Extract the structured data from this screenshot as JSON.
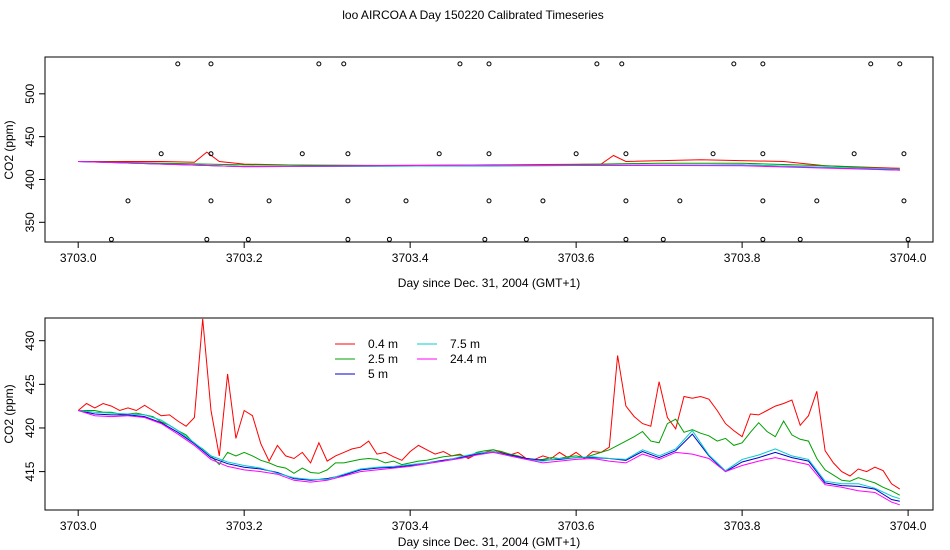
{
  "title": "loo AIRCOA A  Day 150220  Calibrated Timeseries",
  "chart_data": [
    {
      "type": "line",
      "xlabel": "Day since Dec. 31, 2004 (GMT+1)",
      "ylabel": "CO2 (ppm)",
      "xlim": [
        3702.96,
        3704.03
      ],
      "ylim": [
        327,
        543
      ],
      "xticks": [
        "3703.0",
        "3703.2",
        "3703.4",
        "3703.6",
        "3703.8",
        "3704.0"
      ],
      "yticks": [
        "350",
        "400",
        "450",
        "500"
      ],
      "series": [
        {
          "color": "#ff0000",
          "x": [
            3703.0,
            3703.1,
            3703.14,
            3703.155,
            3703.17,
            3703.2,
            3703.3,
            3703.5,
            3703.63,
            3703.645,
            3703.66,
            3703.75,
            3703.85,
            3703.9,
            3703.99
          ],
          "y": [
            421,
            421,
            420,
            432,
            421,
            418,
            416,
            417,
            418,
            428,
            421,
            423,
            421,
            416,
            413
          ]
        },
        {
          "color": "#00a000",
          "x": [
            3703.0,
            3703.2,
            3703.5,
            3703.7,
            3703.8,
            3703.9,
            3703.99
          ],
          "y": [
            421,
            417,
            416,
            419,
            419,
            416,
            412
          ]
        },
        {
          "color": "#0000cc",
          "x": [
            3703.0,
            3703.2,
            3703.5,
            3703.8,
            3703.9,
            3703.99
          ],
          "y": [
            421,
            415,
            416,
            417,
            414,
            411
          ]
        },
        {
          "color": "#00cccc",
          "x": [
            3703.0,
            3703.2,
            3703.5,
            3703.8,
            3703.99
          ],
          "y": [
            421,
            415,
            416,
            417,
            412
          ]
        },
        {
          "color": "#ff00ff",
          "x": [
            3703.0,
            3703.2,
            3703.5,
            3703.8,
            3703.99
          ],
          "y": [
            421,
            415,
            417,
            416,
            411
          ]
        }
      ],
      "markers": {
        "rows": [
          {
            "y": 535,
            "x": [
              3703.12,
              3703.16,
              3703.29,
              3703.32,
              3703.46,
              3703.495,
              3703.625,
              3703.655,
              3703.79,
              3703.825,
              3703.955,
              3703.99
            ]
          },
          {
            "y": 430,
            "x": [
              3703.1,
              3703.16,
              3703.27,
              3703.325,
              3703.435,
              3703.495,
              3703.6,
              3703.66,
              3703.765,
              3703.825,
              3703.935,
              3703.995
            ]
          },
          {
            "y": 375,
            "x": [
              3703.06,
              3703.16,
              3703.23,
              3703.325,
              3703.395,
              3703.495,
              3703.56,
              3703.66,
              3703.725,
              3703.825,
              3703.89,
              3703.995
            ]
          },
          {
            "y": 330,
            "x": [
              3703.04,
              3703.155,
              3703.205,
              3703.325,
              3703.375,
              3703.49,
              3703.54,
              3703.66,
              3703.705,
              3703.825,
              3703.87,
              3704.0
            ]
          }
        ]
      }
    },
    {
      "type": "line",
      "xlabel": "Day since Dec. 31, 2004 (GMT+1)",
      "ylabel": "CO2 (ppm)",
      "xlim": [
        3702.96,
        3704.03
      ],
      "ylim": [
        410.6,
        432.6
      ],
      "xticks": [
        "3703.0",
        "3703.2",
        "3703.4",
        "3703.6",
        "3703.8",
        "3704.0"
      ],
      "yticks": [
        "415",
        "420",
        "425",
        "430"
      ],
      "legend": {
        "position": "top-left",
        "entries": [
          {
            "label": "0.4 m",
            "color": "#ff0000"
          },
          {
            "label": "2.5 m",
            "color": "#00a000"
          },
          {
            "label": "5 m",
            "color": "#0000cc"
          },
          {
            "label": "7.5 m",
            "color": "#00cccc"
          },
          {
            "label": "24.4 m",
            "color": "#ff00ff"
          }
        ]
      },
      "series": [
        {
          "name": "0.4 m",
          "color": "#ff0000",
          "x": [
            3703.0,
            3703.01,
            3703.02,
            3703.03,
            3703.04,
            3703.05,
            3703.06,
            3703.07,
            3703.08,
            3703.09,
            3703.1,
            3703.11,
            3703.12,
            3703.13,
            3703.14,
            3703.15,
            3703.16,
            3703.17,
            3703.18,
            3703.19,
            3703.2,
            3703.21,
            3703.22,
            3703.23,
            3703.24,
            3703.25,
            3703.26,
            3703.27,
            3703.28,
            3703.29,
            3703.3,
            3703.31,
            3703.32,
            3703.33,
            3703.34,
            3703.35,
            3703.36,
            3703.37,
            3703.38,
            3703.39,
            3703.4,
            3703.41,
            3703.42,
            3703.43,
            3703.44,
            3703.45,
            3703.46,
            3703.47,
            3703.48,
            3703.49,
            3703.5,
            3703.51,
            3703.52,
            3703.53,
            3703.54,
            3703.55,
            3703.56,
            3703.57,
            3703.58,
            3703.59,
            3703.6,
            3703.61,
            3703.62,
            3703.63,
            3703.64,
            3703.65,
            3703.66,
            3703.67,
            3703.68,
            3703.69,
            3703.7,
            3703.71,
            3703.72,
            3703.73,
            3703.74,
            3703.75,
            3703.76,
            3703.77,
            3703.78,
            3703.79,
            3703.8,
            3703.81,
            3703.82,
            3703.83,
            3703.84,
            3703.85,
            3703.86,
            3703.87,
            3703.88,
            3703.89,
            3703.9,
            3703.91,
            3703.92,
            3703.93,
            3703.94,
            3703.95,
            3703.96,
            3703.97,
            3703.98,
            3703.99
          ],
          "y": [
            422.0,
            422.8,
            422.3,
            422.8,
            422.5,
            422.0,
            422.3,
            422.0,
            422.6,
            422.0,
            421.4,
            421.5,
            420.8,
            420.2,
            421.2,
            432.5,
            422.0,
            416.8,
            426.2,
            418.8,
            422.0,
            421.4,
            418.2,
            416.2,
            418.0,
            416.8,
            416.5,
            417.2,
            416.0,
            418.3,
            416.2,
            416.8,
            417.2,
            417.6,
            417.8,
            418.5,
            417.0,
            417.2,
            416.7,
            416.3,
            417.3,
            418.0,
            417.5,
            417.0,
            417.3,
            416.8,
            417.0,
            416.5,
            417.0,
            417.2,
            417.5,
            417.2,
            416.9,
            417.2,
            416.5,
            416.4,
            416.8,
            416.5,
            417.2,
            416.6,
            417.2,
            416.5,
            417.3,
            417.2,
            417.8,
            428.3,
            422.5,
            421.3,
            420.5,
            420.2,
            425.3,
            421.2,
            419.9,
            423.6,
            423.4,
            423.6,
            423.3,
            422.0,
            420.5,
            419.7,
            419.0,
            421.6,
            421.5,
            422.0,
            422.5,
            422.8,
            423.2,
            420.3,
            421.4,
            424.2,
            417.4,
            416.0,
            415.0,
            414.5,
            415.3,
            415.0,
            415.5,
            415.1,
            413.6,
            413.0
          ]
        },
        {
          "name": "2.5 m",
          "color": "#00a000",
          "x": [
            3703.0,
            3703.01,
            3703.02,
            3703.03,
            3703.04,
            3703.05,
            3703.06,
            3703.07,
            3703.08,
            3703.09,
            3703.1,
            3703.11,
            3703.12,
            3703.13,
            3703.14,
            3703.15,
            3703.16,
            3703.17,
            3703.18,
            3703.19,
            3703.2,
            3703.21,
            3703.22,
            3703.23,
            3703.24,
            3703.25,
            3703.26,
            3703.27,
            3703.28,
            3703.29,
            3703.3,
            3703.31,
            3703.32,
            3703.33,
            3703.34,
            3703.35,
            3703.36,
            3703.37,
            3703.38,
            3703.39,
            3703.4,
            3703.41,
            3703.42,
            3703.43,
            3703.44,
            3703.45,
            3703.46,
            3703.47,
            3703.48,
            3703.49,
            3703.5,
            3703.51,
            3703.52,
            3703.53,
            3703.54,
            3703.55,
            3703.56,
            3703.57,
            3703.58,
            3703.59,
            3703.6,
            3703.61,
            3703.62,
            3703.63,
            3703.64,
            3703.65,
            3703.66,
            3703.67,
            3703.68,
            3703.69,
            3703.7,
            3703.71,
            3703.72,
            3703.73,
            3703.74,
            3703.75,
            3703.76,
            3703.77,
            3703.78,
            3703.79,
            3703.8,
            3703.81,
            3703.82,
            3703.83,
            3703.84,
            3703.85,
            3703.86,
            3703.87,
            3703.88,
            3703.89,
            3703.9,
            3703.91,
            3703.92,
            3703.93,
            3703.94,
            3703.95,
            3703.96,
            3703.97,
            3703.98,
            3703.99
          ],
          "y": [
            422.0,
            422.0,
            422.0,
            421.8,
            421.8,
            421.6,
            421.6,
            421.7,
            421.5,
            421.3,
            420.7,
            420.3,
            419.7,
            419.2,
            418.2,
            417.6,
            416.8,
            415.8,
            417.2,
            416.8,
            417.2,
            416.8,
            416.3,
            416.0,
            415.6,
            415.4,
            414.8,
            415.4,
            414.9,
            414.8,
            415.2,
            416.0,
            416.0,
            416.2,
            416.4,
            416.5,
            416.4,
            416.0,
            416.2,
            415.8,
            416.0,
            416.2,
            416.3,
            416.5,
            416.7,
            416.8,
            416.9,
            416.6,
            417.2,
            417.4,
            417.5,
            417.3,
            417.0,
            416.8,
            416.5,
            416.3,
            416.4,
            416.6,
            416.5,
            416.7,
            416.8,
            416.6,
            416.9,
            417.2,
            417.5,
            418.0,
            418.5,
            419.0,
            419.6,
            418.5,
            418.3,
            420.5,
            421.0,
            419.5,
            419.8,
            419.4,
            419.1,
            418.5,
            418.8,
            418.0,
            418.3,
            419.5,
            420.6,
            419.6,
            419.0,
            420.8,
            419.2,
            418.7,
            418.5,
            416.5,
            415.2,
            414.6,
            414.0,
            413.9,
            414.3,
            414.0,
            413.7,
            413.2,
            412.8,
            412.3
          ]
        },
        {
          "name": "5 m",
          "color": "#0000cc",
          "x": [
            3703.0,
            3703.02,
            3703.04,
            3703.06,
            3703.08,
            3703.1,
            3703.12,
            3703.14,
            3703.16,
            3703.18,
            3703.2,
            3703.22,
            3703.24,
            3703.26,
            3703.28,
            3703.3,
            3703.32,
            3703.34,
            3703.36,
            3703.38,
            3703.4,
            3703.42,
            3703.44,
            3703.46,
            3703.48,
            3703.5,
            3703.52,
            3703.54,
            3703.56,
            3703.58,
            3703.6,
            3703.62,
            3703.64,
            3703.66,
            3703.68,
            3703.7,
            3703.72,
            3703.74,
            3703.76,
            3703.78,
            3703.8,
            3703.82,
            3703.84,
            3703.86,
            3703.88,
            3703.9,
            3703.92,
            3703.94,
            3703.96,
            3703.98,
            3703.99
          ],
          "y": [
            422.0,
            421.6,
            421.5,
            421.5,
            421.3,
            420.6,
            419.5,
            418.2,
            416.6,
            415.9,
            415.5,
            415.3,
            414.9,
            414.2,
            414.0,
            414.2,
            414.6,
            415.2,
            415.4,
            415.5,
            415.7,
            416.0,
            416.3,
            416.6,
            417.0,
            417.3,
            416.9,
            416.5,
            416.3,
            416.4,
            416.6,
            416.6,
            416.5,
            416.3,
            417.3,
            416.6,
            417.4,
            419.3,
            416.8,
            415.0,
            416.1,
            416.6,
            417.2,
            416.6,
            416.2,
            413.7,
            413.4,
            413.3,
            413.0,
            411.8,
            411.6
          ]
        },
        {
          "name": "7.5 m",
          "color": "#00cccc",
          "x": [
            3703.0,
            3703.02,
            3703.04,
            3703.06,
            3703.08,
            3703.1,
            3703.12,
            3703.14,
            3703.16,
            3703.18,
            3703.2,
            3703.22,
            3703.24,
            3703.26,
            3703.28,
            3703.3,
            3703.32,
            3703.34,
            3703.36,
            3703.38,
            3703.4,
            3703.42,
            3703.44,
            3703.46,
            3703.48,
            3703.5,
            3703.52,
            3703.54,
            3703.56,
            3703.58,
            3703.6,
            3703.62,
            3703.64,
            3703.66,
            3703.68,
            3703.7,
            3703.72,
            3703.74,
            3703.76,
            3703.78,
            3703.8,
            3703.82,
            3703.84,
            3703.86,
            3703.88,
            3703.9,
            3703.92,
            3703.94,
            3703.96,
            3703.98,
            3703.99
          ],
          "y": [
            422.0,
            421.8,
            421.7,
            421.6,
            421.5,
            420.9,
            419.7,
            418.3,
            416.8,
            416.1,
            415.7,
            415.4,
            414.8,
            414.3,
            414.1,
            414.1,
            414.7,
            415.3,
            415.5,
            415.6,
            415.8,
            416.0,
            416.2,
            416.7,
            417.1,
            417.3,
            416.8,
            416.4,
            416.2,
            416.5,
            416.6,
            416.7,
            416.5,
            416.4,
            417.5,
            416.8,
            417.6,
            419.7,
            416.9,
            415.1,
            416.4,
            416.9,
            417.6,
            416.8,
            416.4,
            413.9,
            413.6,
            413.6,
            413.1,
            412.2,
            411.9
          ]
        },
        {
          "name": "24.4 m",
          "color": "#ff00ff",
          "x": [
            3703.0,
            3703.02,
            3703.04,
            3703.06,
            3703.08,
            3703.1,
            3703.12,
            3703.14,
            3703.16,
            3703.18,
            3703.2,
            3703.22,
            3703.24,
            3703.26,
            3703.28,
            3703.3,
            3703.32,
            3703.34,
            3703.36,
            3703.38,
            3703.4,
            3703.42,
            3703.44,
            3703.46,
            3703.48,
            3703.5,
            3703.52,
            3703.54,
            3703.56,
            3703.58,
            3703.6,
            3703.62,
            3703.64,
            3703.66,
            3703.68,
            3703.7,
            3703.72,
            3703.74,
            3703.76,
            3703.78,
            3703.8,
            3703.82,
            3703.84,
            3703.86,
            3703.88,
            3703.9,
            3703.92,
            3703.94,
            3703.96,
            3703.98,
            3703.99
          ],
          "y": [
            422.0,
            421.4,
            421.3,
            421.4,
            421.2,
            420.5,
            419.3,
            418.0,
            416.4,
            415.6,
            415.2,
            415.0,
            414.7,
            414.0,
            413.8,
            414.0,
            414.5,
            415.0,
            415.2,
            415.4,
            415.6,
            415.9,
            416.2,
            416.5,
            416.9,
            417.2,
            416.8,
            416.4,
            416.0,
            416.2,
            416.4,
            416.5,
            416.2,
            416.0,
            417.0,
            416.4,
            417.2,
            417.0,
            416.5,
            415.0,
            415.7,
            416.2,
            416.6,
            416.2,
            415.8,
            413.5,
            413.2,
            412.8,
            412.6,
            411.5,
            411.2
          ]
        }
      ]
    }
  ]
}
